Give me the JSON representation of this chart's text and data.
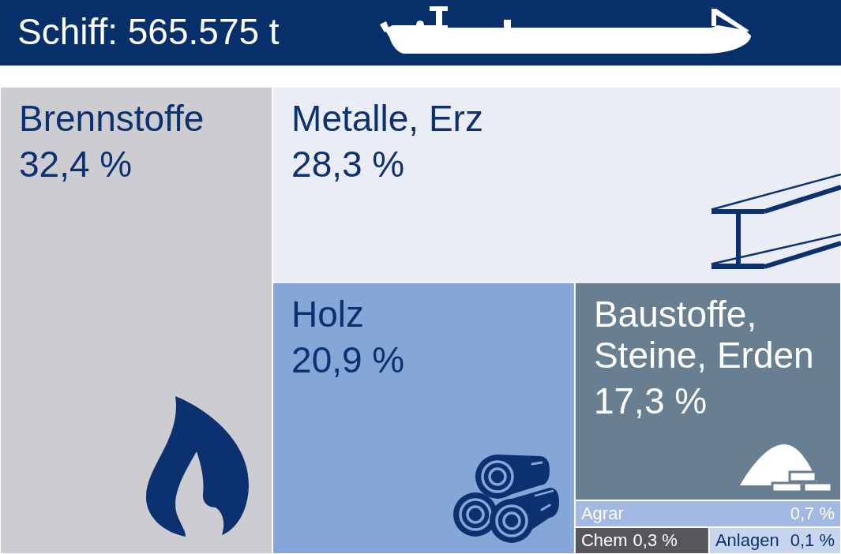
{
  "chart_data": {
    "type": "other",
    "title": "Schiff: 565.575 t",
    "categories": [
      "Brennstoffe",
      "Metalle, Erz",
      "Holz",
      "Baustoffe, Steine, Erden",
      "Agrar",
      "Chem",
      "Anlagen"
    ],
    "values": [
      32.4,
      28.3,
      20.9,
      17.3,
      0.7,
      0.3,
      0.1
    ],
    "value_labels": [
      "32,4 %",
      "28,3 %",
      "20,9 %",
      "17,3 %",
      "0,7 %",
      "0,3 %",
      "0,1 %"
    ],
    "colors": [
      "#cdcdd1",
      "#eaedf6",
      "#84a7d8",
      "#687f92",
      "#a2b9e3",
      "#58565a",
      "#c8d5f0"
    ]
  }
}
